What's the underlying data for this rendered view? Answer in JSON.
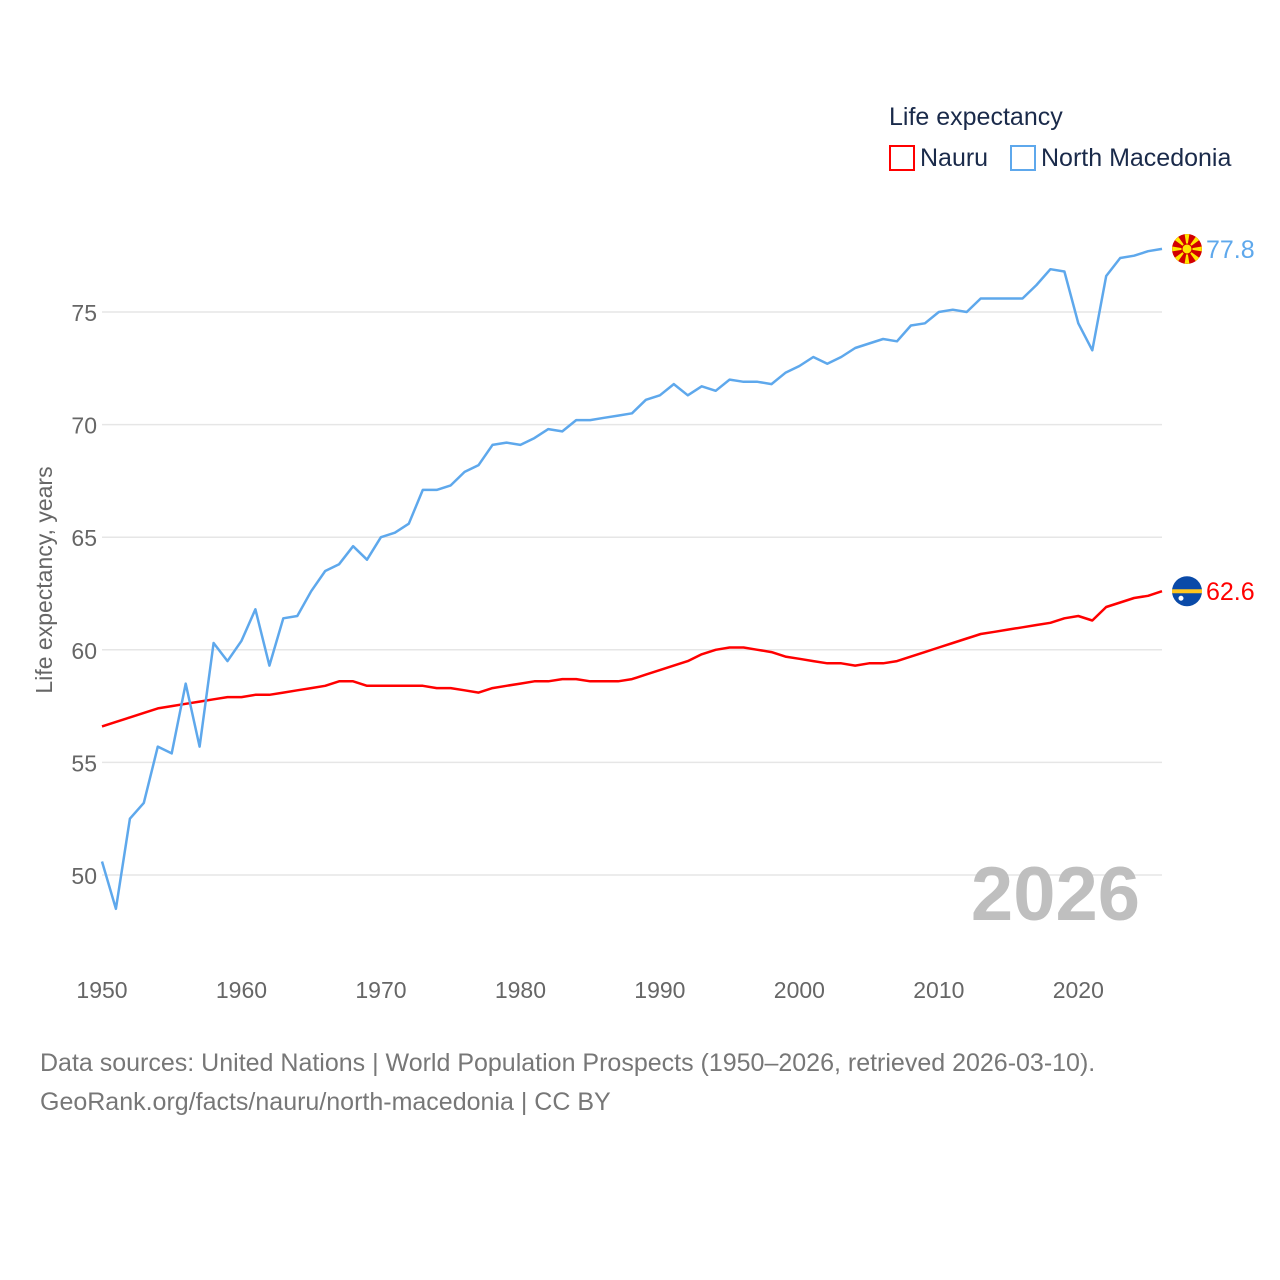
{
  "chart_data": {
    "type": "line",
    "legend_title": "Life expectancy",
    "legend_position": "top-right",
    "ylabel": "Life expectancy, years",
    "xlabel": "",
    "xlim": [
      1950,
      2026
    ],
    "ylim": [
      46,
      80
    ],
    "x_ticks": [
      1950,
      1960,
      1970,
      1980,
      1990,
      2000,
      2010,
      2020
    ],
    "y_ticks": [
      50,
      55,
      60,
      65,
      70,
      75
    ],
    "grid": true,
    "year_watermark": "2026",
    "x": [
      1950,
      1951,
      1952,
      1953,
      1954,
      1955,
      1956,
      1957,
      1958,
      1959,
      1960,
      1961,
      1962,
      1963,
      1964,
      1965,
      1966,
      1967,
      1968,
      1969,
      1970,
      1971,
      1972,
      1973,
      1974,
      1975,
      1976,
      1977,
      1978,
      1979,
      1980,
      1981,
      1982,
      1983,
      1984,
      1985,
      1986,
      1987,
      1988,
      1989,
      1990,
      1991,
      1992,
      1993,
      1994,
      1995,
      1996,
      1997,
      1998,
      1999,
      2000,
      2001,
      2002,
      2003,
      2004,
      2005,
      2006,
      2007,
      2008,
      2009,
      2010,
      2011,
      2012,
      2013,
      2014,
      2015,
      2016,
      2017,
      2018,
      2019,
      2020,
      2021,
      2022,
      2023,
      2024,
      2025,
      2026
    ],
    "series": [
      {
        "name": "Nauru",
        "color": "#ff0000",
        "end_label": "62.6",
        "values": [
          56.6,
          56.8,
          57.0,
          57.2,
          57.4,
          57.5,
          57.6,
          57.7,
          57.8,
          57.9,
          57.9,
          58.0,
          58.0,
          58.1,
          58.2,
          58.3,
          58.4,
          58.6,
          58.6,
          58.4,
          58.4,
          58.4,
          58.4,
          58.4,
          58.3,
          58.3,
          58.2,
          58.1,
          58.3,
          58.4,
          58.5,
          58.6,
          58.6,
          58.7,
          58.7,
          58.6,
          58.6,
          58.6,
          58.7,
          58.9,
          59.1,
          59.3,
          59.5,
          59.8,
          60.0,
          60.1,
          60.1,
          60.0,
          59.9,
          59.7,
          59.6,
          59.5,
          59.4,
          59.4,
          59.3,
          59.4,
          59.4,
          59.5,
          59.7,
          59.9,
          60.1,
          60.3,
          60.5,
          60.7,
          60.8,
          60.9,
          61.0,
          61.1,
          61.2,
          61.4,
          61.5,
          61.3,
          61.9,
          62.1,
          62.3,
          62.4,
          62.6
        ]
      },
      {
        "name": "North Macedonia",
        "color": "#5ea8ec",
        "end_label": "77.8",
        "values": [
          50.6,
          48.5,
          52.5,
          53.2,
          55.7,
          55.4,
          58.5,
          55.7,
          60.3,
          59.5,
          60.4,
          61.8,
          59.3,
          61.4,
          61.5,
          62.6,
          63.5,
          63.8,
          64.6,
          64.0,
          65.0,
          65.2,
          65.6,
          67.1,
          67.1,
          67.3,
          67.9,
          68.2,
          69.1,
          69.2,
          69.1,
          69.4,
          69.8,
          69.7,
          70.2,
          70.2,
          70.3,
          70.4,
          70.5,
          71.1,
          71.3,
          71.8,
          71.3,
          71.7,
          71.5,
          72.0,
          71.9,
          71.9,
          71.8,
          72.3,
          72.6,
          73.0,
          72.7,
          73.0,
          73.4,
          73.6,
          73.8,
          73.7,
          74.4,
          74.5,
          75.0,
          75.1,
          75.0,
          75.6,
          75.6,
          75.6,
          75.6,
          76.2,
          76.9,
          76.8,
          74.5,
          73.3,
          76.6,
          77.4,
          77.5,
          77.7,
          77.8
        ]
      }
    ]
  },
  "footer": {
    "line1": "Data sources: United Nations | World Population Prospects (1950–2026, retrieved 2026-03-10).",
    "line2": "GeoRank.org/facts/nauru/north-macedonia | CC BY"
  }
}
